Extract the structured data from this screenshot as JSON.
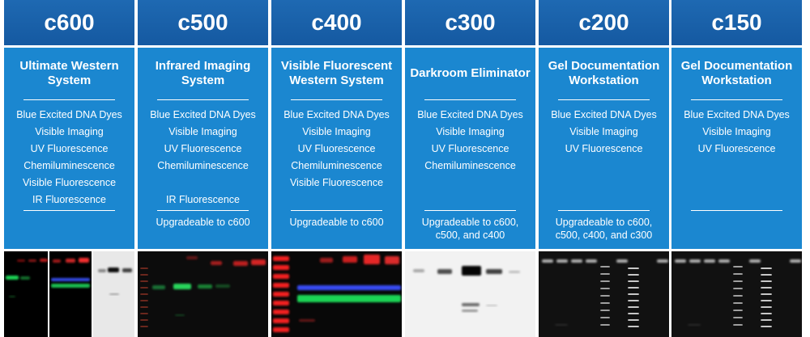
{
  "products": [
    {
      "model": "c600",
      "title": [
        "Ultimate Western",
        "System"
      ],
      "features": [
        "Blue Excited DNA Dyes",
        "Visible Imaging",
        "UV Fluorescence",
        "Chemiluminescence",
        "Visible Fluorescence",
        "IR Fluorescence"
      ],
      "upgrade": ""
    },
    {
      "model": "c500",
      "title": [
        "Infrared Imaging",
        "System"
      ],
      "features": [
        "Blue Excited DNA Dyes",
        "Visible Imaging",
        "UV Fluorescence",
        "Chemiluminescence",
        "",
        "IR Fluorescence"
      ],
      "upgrade": "Upgradeable to c600"
    },
    {
      "model": "c400",
      "title": [
        "Visible Fluorescent",
        "Western System"
      ],
      "features": [
        "Blue Excited DNA Dyes",
        "Visible Imaging",
        "UV Fluorescence",
        "Chemiluminescence",
        "Visible Fluorescence"
      ],
      "upgrade": "Upgradeable to c600"
    },
    {
      "model": "c300",
      "title": [
        "Darkroom Eliminator"
      ],
      "features": [
        "Blue Excited DNA Dyes",
        "Visible Imaging",
        "UV Fluorescence",
        "Chemiluminescence"
      ],
      "upgrade": "Upgradeable to c600,\nc500, and c400"
    },
    {
      "model": "c200",
      "title": [
        "Gel Documentation",
        "Workstation"
      ],
      "features": [
        "Blue Excited DNA Dyes",
        "Visible Imaging",
        "UV Fluorescence"
      ],
      "upgrade": "Upgradeable to c600,\nc500, c400, and c300"
    },
    {
      "model": "c150",
      "title": [
        "Gel Documentation",
        "Workstation"
      ],
      "features": [
        "Blue Excited DNA Dyes",
        "Visible Imaging",
        "UV Fluorescence"
      ],
      "upgrade": ""
    }
  ],
  "colors": {
    "header_bg": "#1a63ad",
    "body_bg": "#1b87d0",
    "text": "#ffffff"
  }
}
